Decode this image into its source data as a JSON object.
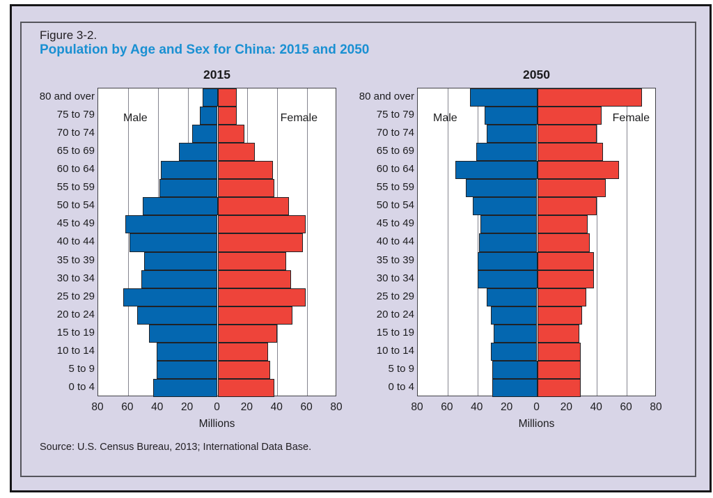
{
  "figure": {
    "label": "Figure 3-2.",
    "title": "Population by Age and Sex for China: 2015 and 2050",
    "title_color": "#1a90d2",
    "source": "Source: U.S. Census Bureau, 2013; International Data Base."
  },
  "colors": {
    "male": "#0467b0",
    "female": "#ee443a",
    "panel_background": "#d8d5e7",
    "bar_outline": "#202226"
  },
  "chart_data": [
    {
      "type": "bar",
      "subtype": "population-pyramid",
      "title": "2015",
      "xlabel": "Millions",
      "x_tick_labels": [
        "80",
        "60",
        "40",
        "20",
        "0",
        "20",
        "40",
        "60",
        "80"
      ],
      "xlim_each_side": 80,
      "grid": true,
      "left_label": "Male",
      "right_label": "Female",
      "age_groups": [
        "80 and over",
        "75 to 79",
        "70 to 74",
        "65 to 69",
        "60 to 64",
        "55 to 59",
        "50 to 54",
        "45 to 49",
        "40 to 44",
        "35 to 39",
        "30 to 34",
        "25 to 29",
        "20 to 24",
        "15 to 19",
        "10 to 14",
        "5 to 9",
        "0 to 4"
      ],
      "series": [
        {
          "name": "Male",
          "color": "#0467b0",
          "values": [
            10,
            12,
            17,
            26,
            38,
            39,
            50,
            62,
            59,
            49,
            51,
            63,
            54,
            46,
            41,
            41,
            43
          ]
        },
        {
          "name": "Female",
          "color": "#ee443a",
          "values": [
            13,
            13,
            18,
            25,
            37,
            38,
            48,
            59,
            57,
            46,
            49,
            59,
            50,
            40,
            34,
            35,
            38
          ]
        }
      ]
    },
    {
      "type": "bar",
      "subtype": "population-pyramid",
      "title": "2050",
      "xlabel": "Millions",
      "x_tick_labels": [
        "80",
        "60",
        "40",
        "20",
        "0",
        "20",
        "40",
        "60",
        "80"
      ],
      "xlim_each_side": 80,
      "grid": true,
      "left_label": "Male",
      "right_label": "Female",
      "age_groups": [
        "80 and over",
        "75 to 79",
        "70 to 74",
        "65 to 69",
        "60 to 64",
        "55 to 59",
        "50 to 54",
        "45 to 49",
        "40 to 44",
        "35 to 39",
        "30 to 34",
        "25 to 29",
        "20 to 24",
        "15 to 19",
        "10 to 14",
        "5 to 9",
        "0 to 4"
      ],
      "series": [
        {
          "name": "Male",
          "color": "#0467b0",
          "values": [
            45,
            35,
            34,
            41,
            55,
            48,
            43,
            38,
            39,
            40,
            40,
            34,
            31,
            29,
            31,
            30,
            30
          ]
        },
        {
          "name": "Female",
          "color": "#ee443a",
          "values": [
            70,
            43,
            40,
            44,
            55,
            46,
            40,
            34,
            35,
            38,
            38,
            33,
            30,
            28,
            29,
            29,
            29
          ]
        }
      ]
    }
  ]
}
